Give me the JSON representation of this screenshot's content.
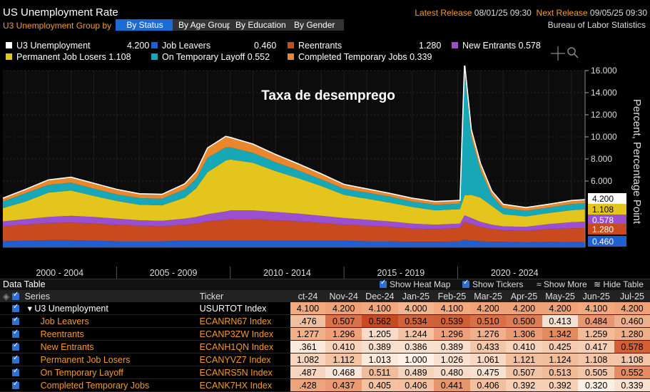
{
  "header": {
    "title": "US Unemployment Rate",
    "group_by_label": "U3 Unemployment  Group by",
    "group_buttons": [
      "By Status",
      "By Age Group",
      "By Education",
      "By Gender"
    ],
    "latest_release_label": "Latest Release",
    "latest_release_value": "08/01/25 09:30",
    "next_release_label": "Next Release",
    "next_release_value": "09/05/25 09:30",
    "source": "Bureau of Labor Statistics"
  },
  "legend": [
    {
      "name": "U3 Unemployment",
      "value": "4.200",
      "color": "#ffffff"
    },
    {
      "name": "Job Leavers",
      "value": "0.460",
      "color": "#1f5fd0"
    },
    {
      "name": "Reentrants",
      "value": "1.280",
      "color": "#c84a1e"
    },
    {
      "name": "New Entrants",
      "value": "0.578",
      "color": "#9a4fd0"
    },
    {
      "name": "Permanent Job Losers",
      "value": "1.108",
      "color": "#e3c51e"
    },
    {
      "name": "On Temporary Layoff",
      "value": "0.552",
      "color": "#17a8b8"
    },
    {
      "name": "Completed Temporary Jobs",
      "value": "0.339",
      "color": "#e8872c"
    }
  ],
  "chart_data": {
    "type": "area",
    "title": "Taxa de desemprego",
    "ylabel": "Percent, Percentage Point",
    "ylim": [
      0,
      16
    ],
    "y_ticks": [
      "16.000",
      "14.000",
      "12.000",
      "10.000",
      "8.000",
      "6.000"
    ],
    "x_labels": [
      "2000 - 2004",
      "2005 - 2009",
      "2010 - 2014",
      "2015 - 2019",
      "2020 - 2024"
    ],
    "x_range": [
      2000,
      2025.6
    ],
    "x": [
      2000,
      2001,
      2002,
      2003,
      2004,
      2005,
      2006,
      2007,
      2008,
      2008.5,
      2009,
      2009.8,
      2010,
      2011,
      2012,
      2013,
      2014,
      2015,
      2016,
      2017,
      2018,
      2019,
      2020.1,
      2020.3,
      2020.6,
      2021,
      2021.5,
      2022,
      2023,
      2024,
      2025,
      2025.6
    ],
    "series": [
      {
        "name": "Job Leavers",
        "color": "#1f5fd0",
        "values": [
          0.55,
          0.6,
          0.65,
          0.65,
          0.6,
          0.55,
          0.55,
          0.55,
          0.6,
          0.6,
          0.6,
          0.6,
          0.6,
          0.6,
          0.6,
          0.6,
          0.6,
          0.6,
          0.55,
          0.55,
          0.5,
          0.5,
          0.55,
          0.7,
          0.6,
          0.55,
          0.5,
          0.5,
          0.45,
          0.5,
          0.48,
          0.46
        ]
      },
      {
        "name": "Reentrants",
        "color": "#c84a1e",
        "values": [
          1.35,
          1.45,
          1.55,
          1.6,
          1.55,
          1.5,
          1.4,
          1.35,
          1.45,
          1.55,
          1.75,
          1.9,
          1.95,
          1.95,
          1.85,
          1.75,
          1.6,
          1.45,
          1.4,
          1.3,
          1.2,
          1.15,
          1.2,
          1.6,
          1.5,
          1.3,
          1.15,
          1.05,
          1.05,
          1.15,
          1.25,
          1.28
        ]
      },
      {
        "name": "New Entrants",
        "color": "#9a4fd0",
        "values": [
          0.45,
          0.5,
          0.55,
          0.6,
          0.6,
          0.55,
          0.5,
          0.5,
          0.55,
          0.6,
          0.65,
          0.75,
          0.8,
          0.8,
          0.75,
          0.7,
          0.65,
          0.6,
          0.55,
          0.5,
          0.45,
          0.4,
          0.4,
          0.6,
          0.55,
          0.45,
          0.4,
          0.35,
          0.35,
          0.45,
          0.55,
          0.58
        ]
      },
      {
        "name": "Permanent Job Losers",
        "color": "#e3c51e",
        "values": [
          1.2,
          1.6,
          2.2,
          2.3,
          1.9,
          1.6,
          1.4,
          1.4,
          1.9,
          2.6,
          3.8,
          4.6,
          4.6,
          4.3,
          3.7,
          3.2,
          2.7,
          2.1,
          1.9,
          1.7,
          1.5,
          1.3,
          1.3,
          1.8,
          2.1,
          2.2,
          1.7,
          1.1,
          0.95,
          1.0,
          1.08,
          1.11
        ]
      },
      {
        "name": "On Temporary Layoff",
        "color": "#17a8b8",
        "values": [
          0.6,
          0.75,
          0.7,
          0.7,
          0.65,
          0.6,
          0.6,
          0.6,
          0.75,
          0.85,
          1.3,
          1.2,
          1.1,
          0.9,
          0.8,
          0.7,
          0.6,
          0.55,
          0.55,
          0.55,
          0.5,
          0.5,
          0.5,
          11.3,
          5.2,
          2.5,
          0.9,
          0.55,
          0.5,
          0.5,
          0.55,
          0.55
        ]
      },
      {
        "name": "Completed Temporary Jobs",
        "color": "#e8872c",
        "values": [
          0.3,
          0.35,
          0.45,
          0.5,
          0.5,
          0.45,
          0.4,
          0.4,
          0.5,
          0.65,
          0.9,
          1.0,
          0.9,
          0.8,
          0.7,
          0.6,
          0.5,
          0.4,
          0.35,
          0.3,
          0.3,
          0.3,
          0.3,
          0.7,
          0.7,
          0.6,
          0.45,
          0.35,
          0.3,
          0.3,
          0.33,
          0.34
        ]
      }
    ],
    "last_value_labels": [
      {
        "text": "4.200",
        "bg": "#ffffff",
        "fg": "#000000"
      },
      {
        "text": "1.108",
        "bg": "#e3c51e",
        "fg": "#000000"
      },
      {
        "text": "0.578",
        "bg": "#9a4fd0",
        "fg": "#ffffff"
      },
      {
        "text": "1.280",
        "bg": "#c84a1e",
        "fg": "#ffffff"
      },
      {
        "text": "0.460",
        "bg": "#1f5fd0",
        "fg": "#ffffff"
      }
    ]
  },
  "data_table": {
    "title": "Data Table",
    "show_heat_map": "Show Heat Map",
    "show_tickers": "Show Tickers",
    "show_more": "Show More",
    "hide_table": "Hide Table",
    "col_series": "Series",
    "col_ticker": "Ticker",
    "months": [
      "ct-24",
      "Nov-24",
      "Dec-24",
      "Jan-25",
      "Feb-25",
      "Mar-25",
      "Apr-25",
      "May-25",
      "Jun-25",
      "Jul-25"
    ],
    "rows": [
      {
        "series": "▾ U3 Unemployment",
        "ticker": "USURTOT Index",
        "values": [
          "4.100",
          "4.200",
          "4.100",
          "4.000",
          "4.100",
          "4.200",
          "4.200",
          "4.200",
          "4.100",
          "4.200"
        ],
        "heat": [
          "#f1a97d",
          "#f0a277",
          "#f1a97d",
          "#f3b590",
          "#f1a97d",
          "#f0a277",
          "#f0a277",
          "#f0a277",
          "#f1a97d",
          "#f0a277"
        ]
      },
      {
        "series": "Job Leavers",
        "ticker": "ECANRN67 Index",
        "values": [
          ".476",
          "0.507",
          "0.562",
          "0.534",
          "0.539",
          "0.510",
          "0.500",
          "0.413",
          "0.484",
          "0.460"
        ],
        "heat": [
          "#ecc0a0",
          "#d9724a",
          "#c84a22",
          "#d0633a",
          "#cf5f35",
          "#d86f46",
          "#dd7b52",
          "#f5e1cf",
          "#e69670",
          "#ecb08c"
        ]
      },
      {
        "series": "Reentrants",
        "ticker": "ECANP3ZW Index",
        "values": [
          "1.277",
          "1.296",
          "1.205",
          "1.244",
          "1.296",
          "1.276",
          "1.306",
          "1.342",
          "1.259",
          "1.280"
        ],
        "heat": [
          "#f0b08b",
          "#eea07a",
          "#f8dcc8",
          "#f3c3a4",
          "#eea07a",
          "#f0b08b",
          "#ec9a72",
          "#e48a60",
          "#f2bc99",
          "#f0ae88"
        ]
      },
      {
        "series": "New Entrants",
        "ticker": "ECANH1QN Index",
        "values": [
          ".361",
          "0.410",
          "0.389",
          "0.386",
          "0.389",
          "0.433",
          "0.410",
          "0.425",
          "0.417",
          "0.578"
        ],
        "heat": [
          "#fbe9dc",
          "#f6d3bc",
          "#f9dfcd",
          "#f9e1d0",
          "#f9dfcd",
          "#f3c6a8",
          "#f6d3bc",
          "#f4cbaf",
          "#f5cfb6",
          "#d35f35"
        ]
      },
      {
        "series": "Permanent Job Losers",
        "ticker": "ECANYVZ7 Index",
        "values": [
          "1.082",
          "1.112",
          "1.013",
          "1.000",
          "1.026",
          "1.061",
          "1.121",
          "1.124",
          "1.108",
          "1.108"
        ],
        "heat": [
          "#f6d5be",
          "#f3c3a4",
          "#fbeadc",
          "#fdf1e8",
          "#f9e2d1",
          "#f7d8c3",
          "#f2bf9e",
          "#f2bd9b",
          "#f3c5a6",
          "#f3c5a6"
        ]
      },
      {
        "series": "On Temporary Layoff",
        "ticker": "ECANRS5N Index",
        "values": [
          ".487",
          "0.468",
          "0.511",
          "0.489",
          "0.480",
          "0.475",
          "0.507",
          "0.513",
          "0.505",
          "0.552"
        ],
        "heat": [
          "#f6d6c1",
          "#fae6d8",
          "#f1bc9a",
          "#f5d3bc",
          "#f8dcc9",
          "#f9e1d0",
          "#f2c3a4",
          "#f1bb99",
          "#f3c6a8",
          "#e38c63"
        ]
      },
      {
        "series": "Completed Temporary Jobs",
        "ticker": "ECANK7HX Index",
        "values": [
          ".428",
          "0.437",
          "0.405",
          "0.406",
          "0.441",
          "0.406",
          "0.392",
          "0.392",
          "0.320",
          "0.339"
        ],
        "heat": [
          "#eda47d",
          "#e99a72",
          "#f3c2a3",
          "#f2c0a0",
          "#e7956c",
          "#f2c0a0",
          "#f6cfb7",
          "#f6cfb7",
          "#fcefe6",
          "#f9e1d0"
        ]
      }
    ]
  }
}
